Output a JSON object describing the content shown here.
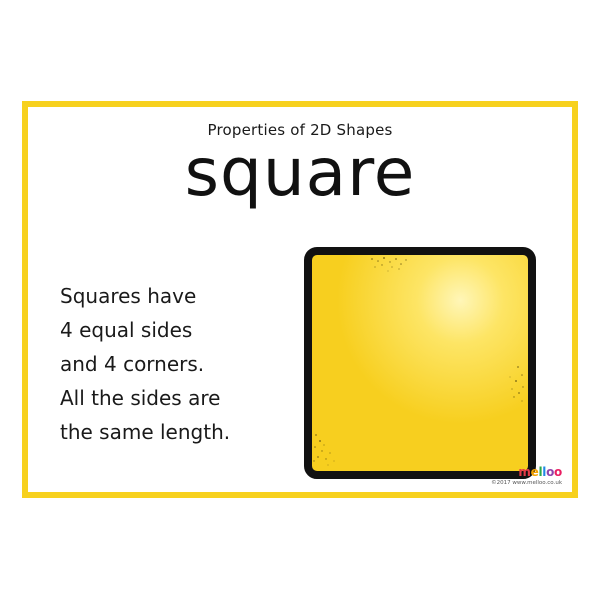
{
  "card": {
    "subtitle": "Properties of 2D Shapes",
    "title": "square",
    "description_lines": [
      "Squares have",
      "4 equal sides",
      "and 4 corners.",
      "All the sides are",
      "the same length."
    ],
    "shape_icon": "yellow-square-icon"
  },
  "branding": {
    "logo_text": "melloo",
    "logo_letters": [
      "m",
      "e",
      "l",
      "l",
      "o",
      "o"
    ],
    "logo_colors": [
      "#e63946",
      "#f4a300",
      "#2ba84a",
      "#1e88e5",
      "#8e44ad",
      "#e91e63"
    ],
    "copyright": "©2017 www.melloo.co.uk"
  },
  "colors": {
    "border": "#f7d11e",
    "shape_fill": "#fcd62c",
    "shape_outline": "#111111",
    "text": "#1a1a1a"
  }
}
